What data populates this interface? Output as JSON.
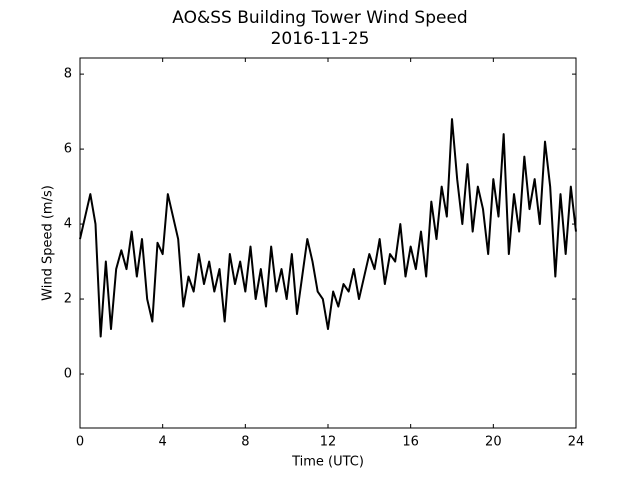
{
  "chart_data": {
    "type": "line",
    "title": "AO&SS Building Tower Wind Speed",
    "subtitle": "2016-11-25",
    "x_label": "Time (UTC)",
    "y_label": "Wind Speed (m/s)",
    "color": "#000000",
    "xlim": [
      0,
      24
    ],
    "ylim": [
      -1.44,
      8.43
    ],
    "xticks": [
      0,
      4,
      8,
      12,
      16,
      20,
      24
    ],
    "yticks": [
      0,
      2,
      4,
      6,
      8
    ],
    "x": [
      0,
      0.25,
      0.5,
      0.75,
      1,
      1.25,
      1.5,
      1.75,
      2,
      2.25,
      2.5,
      2.75,
      3,
      3.25,
      3.5,
      3.75,
      4,
      4.25,
      4.5,
      4.75,
      5,
      5.25,
      5.5,
      5.75,
      6,
      6.25,
      6.5,
      6.75,
      7,
      7.25,
      7.5,
      7.75,
      8,
      8.25,
      8.5,
      8.75,
      9,
      9.25,
      9.5,
      9.75,
      10,
      10.25,
      10.5,
      10.75,
      11,
      11.25,
      11.5,
      11.75,
      12,
      12.25,
      12.5,
      12.75,
      13,
      13.25,
      13.5,
      13.75,
      14,
      14.25,
      14.5,
      14.75,
      15,
      15.25,
      15.5,
      15.75,
      16,
      16.25,
      16.5,
      16.75,
      17,
      17.25,
      17.5,
      17.75,
      18,
      18.25,
      18.5,
      18.75,
      19,
      19.25,
      19.5,
      19.75,
      20,
      20.25,
      20.5,
      20.75,
      21,
      21.25,
      21.5,
      21.75,
      22,
      22.25,
      22.5,
      22.75,
      23,
      23.25,
      23.5,
      23.75,
      24
    ],
    "values": [
      3.6,
      4.2,
      4.8,
      4.0,
      1.0,
      3.0,
      1.2,
      2.8,
      3.3,
      2.8,
      3.8,
      2.6,
      3.6,
      2.0,
      1.4,
      3.5,
      3.2,
      4.8,
      4.2,
      3.6,
      1.8,
      2.6,
      2.2,
      3.2,
      2.4,
      3.0,
      2.2,
      2.8,
      1.4,
      3.2,
      2.4,
      3.0,
      2.2,
      3.4,
      2.0,
      2.8,
      1.8,
      3.4,
      2.2,
      2.8,
      2.0,
      3.2,
      1.6,
      2.6,
      3.6,
      3.0,
      2.2,
      2.0,
      1.2,
      2.2,
      1.8,
      2.4,
      2.2,
      2.8,
      2.0,
      2.6,
      3.2,
      2.8,
      3.6,
      2.4,
      3.2,
      3.0,
      4.0,
      2.6,
      3.4,
      2.8,
      3.8,
      2.6,
      4.6,
      3.6,
      5.0,
      4.2,
      6.8,
      5.2,
      4.0,
      5.6,
      3.8,
      5.0,
      4.4,
      3.2,
      5.2,
      4.2,
      6.4,
      3.2,
      4.8,
      3.8,
      5.8,
      4.4,
      5.2,
      4.0,
      6.2,
      5.0,
      2.6,
      4.8,
      3.2,
      5.0,
      3.8
    ]
  }
}
